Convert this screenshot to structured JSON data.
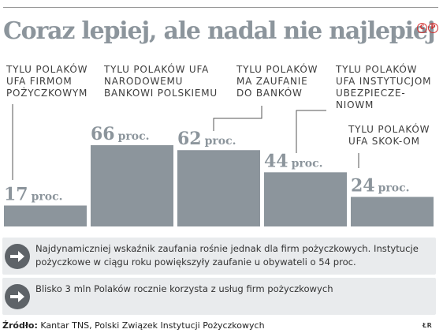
{
  "title": "Coraz lepiej, ale nadal nie najlepiej",
  "copyright_badge": [
    "C",
    "P"
  ],
  "chart_data": {
    "type": "bar",
    "title": "Coraz lepiej, ale nadal nie najlepiej",
    "unit": "proc.",
    "categories": [
      [
        "TYLU POLAKÓW",
        "UFA FIRMOM",
        "POŻYCZKOWYM"
      ],
      [
        "TYLU POLAKÓW UFA",
        "NARODOWEMU",
        "BANKOWI POLSKIEMU"
      ],
      [
        "TYLU POLAKÓW",
        "MA ZAUFANIE",
        "DO BANKÓW"
      ],
      [
        "TYLU POLAKÓW",
        "UFA INSTYTUCJOM",
        "UBEZPIECZE-",
        "NIOWM"
      ],
      [
        "TYLU POLAKÓW",
        "UFA SKOK-OM"
      ]
    ],
    "values": [
      17,
      66,
      62,
      44,
      24
    ],
    "value_labels": [
      "17",
      "66",
      "62",
      "44",
      "24"
    ],
    "bar_color": "#8c959c",
    "ylim": [
      0,
      66
    ]
  },
  "notes": [
    {
      "text": "Najdynamiczniej wskaźnik zaufania rośnie jednak dla firm pożyczkowych. Instytucje pożyczkowe w ciągu roku powiększyły zaufanie u obywateli o 54 proc."
    },
    {
      "text": "Blisko 3 mln Polaków rocznie korzysta z usług firm pożyczkowych"
    }
  ],
  "source": {
    "label": "Źródło:",
    "text": "Kantar TNS, Polski Związek Instytucji Pożyczkowych"
  },
  "credit": "ŁR"
}
